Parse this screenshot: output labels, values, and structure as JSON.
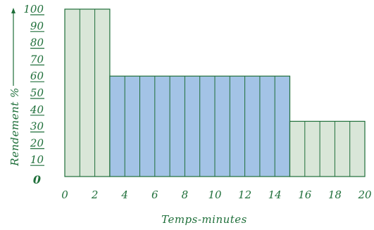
{
  "chart_data": {
    "type": "bar",
    "xlabel": "Temps-minutes",
    "ylabel": "Rendement %",
    "xlim": [
      0,
      20
    ],
    "ylim": [
      0,
      100
    ],
    "x_ticks": [
      0,
      2,
      4,
      6,
      8,
      10,
      12,
      14,
      16,
      18,
      20
    ],
    "y_ticks": [
      0,
      10,
      20,
      30,
      40,
      50,
      60,
      70,
      80,
      90,
      100
    ],
    "bars": [
      {
        "x_start": 0,
        "x_end": 3,
        "value": 100,
        "color": "#d9e6d8"
      },
      {
        "x_start": 3,
        "x_end": 15,
        "value": 60,
        "color": "#a3c3e6"
      },
      {
        "x_start": 15,
        "x_end": 20,
        "value": 33,
        "color": "#d9e6d8"
      }
    ],
    "grid": false
  }
}
